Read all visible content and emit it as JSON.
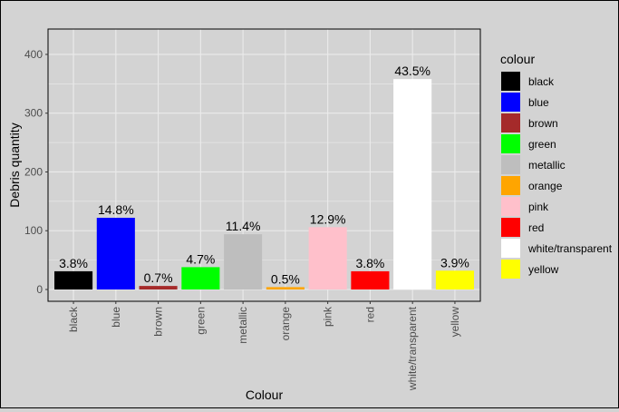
{
  "chart_data": {
    "type": "bar",
    "xlabel": "Colour",
    "ylabel": "Debris quantity",
    "ylim": [
      0,
      420
    ],
    "yticks": [
      0,
      100,
      200,
      300,
      400
    ],
    "grid": true,
    "legend_title": "colour",
    "legend_position": "right",
    "categories": [
      "black",
      "blue",
      "brown",
      "green",
      "metallic",
      "orange",
      "pink",
      "red",
      "white/transparent",
      "yellow"
    ],
    "values": [
      31,
      122,
      6,
      38,
      94,
      4,
      106,
      31,
      358,
      32
    ],
    "labels": [
      "3.8%",
      "14.8%",
      "0.7%",
      "4.7%",
      "11.4%",
      "0.5%",
      "12.9%",
      "3.8%",
      "43.5%",
      "3.9%"
    ],
    "colors": [
      "#000000",
      "#0000ff",
      "#a52a2a",
      "#00ff00",
      "#bebebe",
      "#ffa500",
      "#ffc0cb",
      "#ff0000",
      "#ffffff",
      "#ffff00"
    ],
    "panel_background": "#d3d3d3",
    "grid_color": "#ebebeb"
  }
}
